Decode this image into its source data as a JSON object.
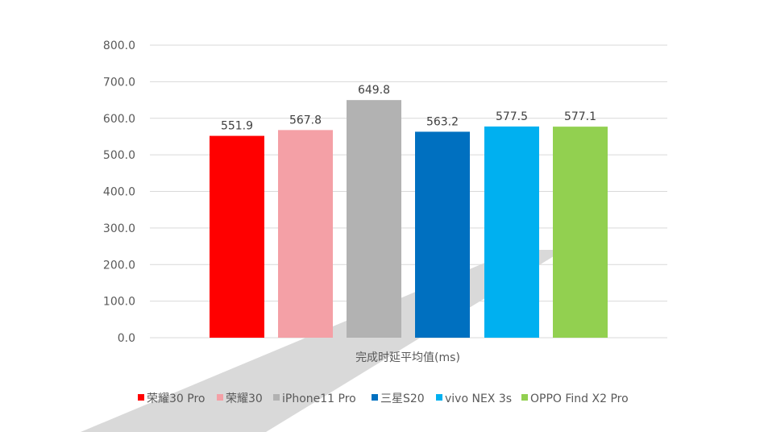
{
  "chart_data": {
    "type": "bar",
    "categories": [
      "荣耀30 Pro",
      "荣耀30",
      "iPhone11 Pro",
      "三星S20",
      "vivo NEX 3s",
      "OPPO Find X2 Pro"
    ],
    "series": [
      {
        "name": "完成时延平均值(ms)",
        "values": [
          551.9,
          567.8,
          649.8,
          563.2,
          577.5,
          577.1
        ]
      }
    ],
    "value_labels": [
      "551.9",
      "567.8",
      "649.8",
      "563.2",
      "577.5",
      "577.1"
    ],
    "colors": [
      "#ff0000",
      "#f4a0a6",
      "#b2b2b2",
      "#0070c0",
      "#00b0f0",
      "#92d050"
    ],
    "xlabel": "完成时延平均值(ms)",
    "ylabel": "",
    "ylim": [
      0,
      800
    ],
    "yticks": [
      "0.0",
      "100.0",
      "200.0",
      "300.0",
      "400.0",
      "500.0",
      "600.0",
      "700.0",
      "800.0"
    ],
    "grid": true,
    "legend_position": "bottom",
    "background_decoration_color": "#d9d9d9",
    "gridline_color": "#d9d9d9"
  }
}
